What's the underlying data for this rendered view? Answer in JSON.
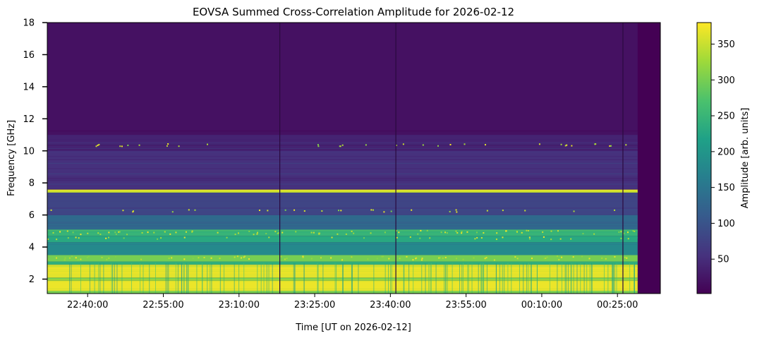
{
  "chart_data": {
    "type": "heatmap",
    "title": "EOVSA Summed Cross-Correlation Amplitude for 2026-02-12",
    "xlabel": "Time [UT on 2026-02-12]",
    "ylabel": "Frequency [GHz]",
    "colorbar_label": "Amplitude [arb. units]",
    "colormap": "viridis",
    "x_ticks": [
      "22:40:00",
      "22:55:00",
      "23:10:00",
      "23:25:00",
      "23:40:00",
      "23:55:00",
      "00:10:00",
      "00:25:00"
    ],
    "x_range": [
      "22:32:00",
      "00:33:30"
    ],
    "y_ticks": [
      2,
      4,
      6,
      8,
      10,
      12,
      14,
      16,
      18
    ],
    "ylim": [
      1.1,
      18.0
    ],
    "colorbar_ticks": [
      50,
      100,
      150,
      200,
      250,
      300,
      350
    ],
    "colorbar_range": [
      2,
      380
    ],
    "data_end_time": "00:29:00",
    "dropout_times": [
      "23:18:00",
      "23:41:00",
      "00:26:00"
    ],
    "bands": [
      {
        "f_min": 1.1,
        "f_max": 1.3,
        "amplitude": 300
      },
      {
        "f_min": 1.3,
        "f_max": 1.9,
        "amplitude": 370
      },
      {
        "f_min": 1.9,
        "f_max": 2.1,
        "amplitude": 320
      },
      {
        "f_min": 2.1,
        "f_max": 2.9,
        "amplitude": 365
      },
      {
        "f_min": 2.9,
        "f_max": 3.1,
        "amplitude": 240
      },
      {
        "f_min": 3.1,
        "f_max": 3.5,
        "amplitude": 300
      },
      {
        "f_min": 3.5,
        "f_max": 4.3,
        "amplitude": 180
      },
      {
        "f_min": 4.3,
        "f_max": 4.7,
        "amplitude": 230
      },
      {
        "f_min": 4.7,
        "f_max": 5.1,
        "amplitude": 250
      },
      {
        "f_min": 5.1,
        "f_max": 6.0,
        "amplitude": 130
      },
      {
        "f_min": 6.0,
        "f_max": 7.4,
        "amplitude": 80
      },
      {
        "f_min": 7.4,
        "f_max": 7.6,
        "amplitude": 360
      },
      {
        "f_min": 7.6,
        "f_max": 10.0,
        "amplitude": 55
      },
      {
        "f_min": 10.0,
        "f_max": 11.0,
        "amplitude": 40
      },
      {
        "f_min": 11.0,
        "f_max": 18.0,
        "amplitude": 20
      }
    ]
  }
}
